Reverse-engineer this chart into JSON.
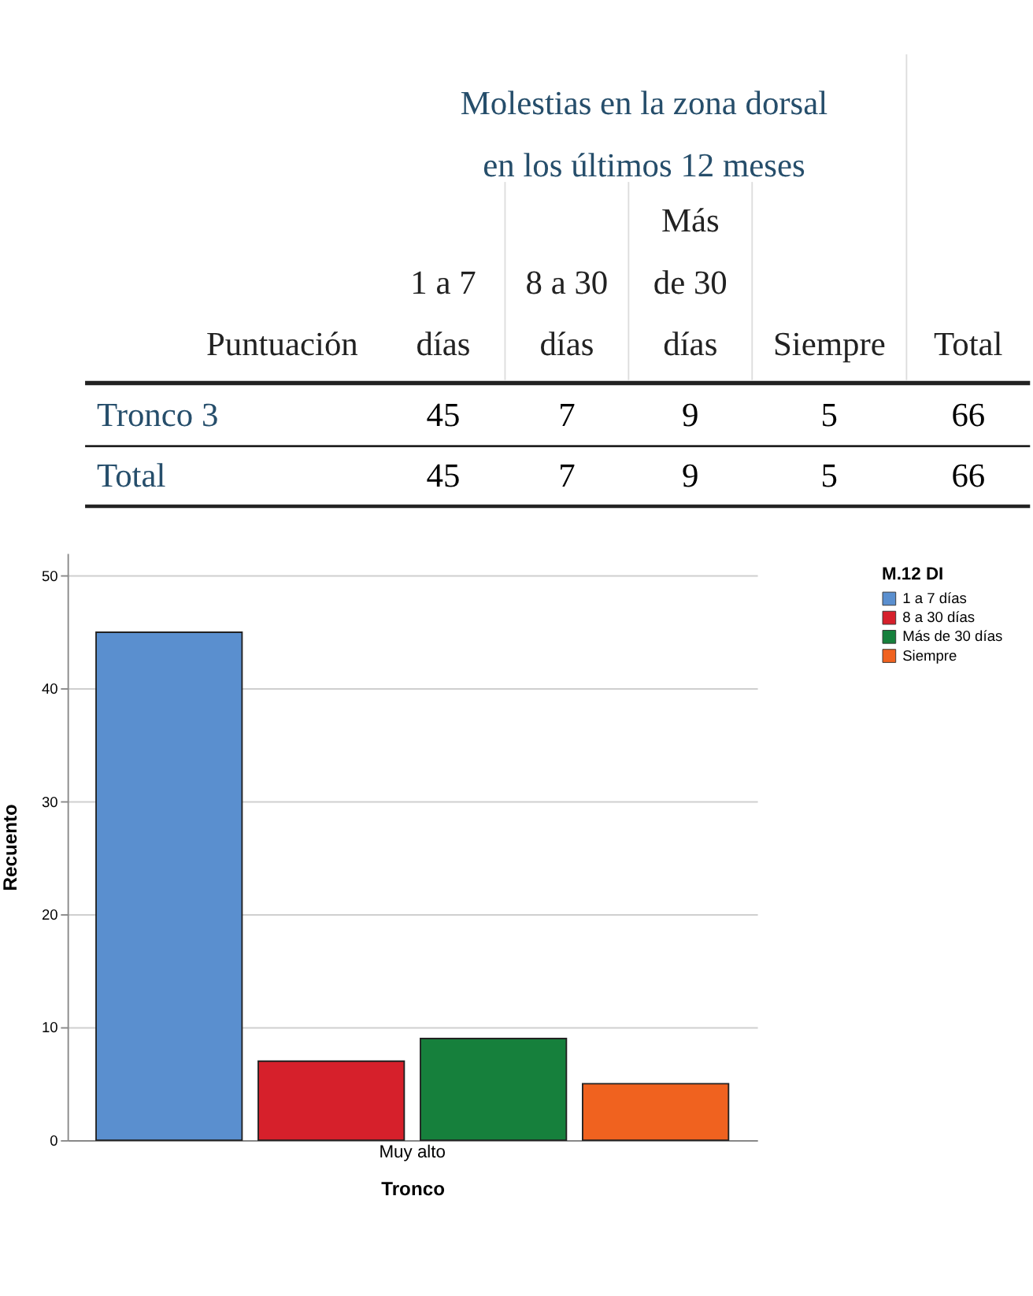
{
  "chart_data": [
    {
      "type": "heatmap",
      "title": "Molestias en la zona dorsal en los últimos 12 meses",
      "ylabel": "Puntuación",
      "categories": [
        "1 a 7 días",
        "8 a 30 días",
        "Más de 30 días",
        "Siempre",
        "Total"
      ],
      "y_categories": [
        "Tronco 3",
        "Total"
      ],
      "cells": [
        [
          45,
          7,
          9,
          5,
          66
        ],
        [
          45,
          7,
          9,
          5,
          66
        ]
      ],
      "data_labels": true
    },
    {
      "type": "bar",
      "categories": [
        "Muy alto"
      ],
      "xlabel": "Tronco",
      "ylabel": "Recuento",
      "legend_title": "M.12 DI",
      "series": [
        {
          "name": "1 a 7 días",
          "color": "#5a8fcf",
          "values": [
            45
          ]
        },
        {
          "name": "8 a 30 días",
          "color": "#d6202b",
          "values": [
            7
          ]
        },
        {
          "name": "Más de 30 días",
          "color": "#16803c",
          "values": [
            9
          ]
        },
        {
          "name": "Siempre",
          "color": "#f0621f",
          "values": [
            5
          ]
        }
      ],
      "ylim": [
        0,
        52
      ],
      "yticks": [
        0,
        10,
        20,
        30,
        40,
        50
      ],
      "grid": "y",
      "legend": "top right"
    }
  ]
}
